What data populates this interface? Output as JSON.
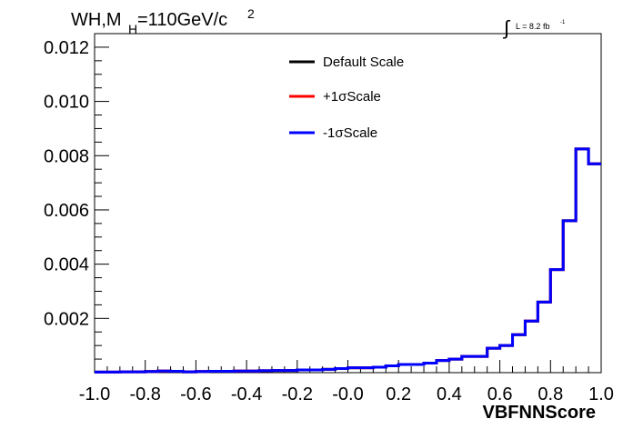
{
  "chart_data": {
    "type": "line",
    "title": "WH,M",
    "title_sub": "H",
    "title_rest": "=110GeV/c",
    "title_sup": "2",
    "lumi_integral": "∫",
    "lumi_text": "L = 8.2 fb",
    "lumi_sup": "-1",
    "xlabel": "VBFNNScore",
    "ylabel": "",
    "xlim": [
      -1.0,
      1.0
    ],
    "ylim": [
      0,
      0.0125
    ],
    "grid": false,
    "legend_position": "top-center",
    "x_ticks": [
      "-1.0",
      "-0.8",
      "-0.6",
      "-0.4",
      "-0.2",
      "-0.0",
      "0.2",
      "0.4",
      "0.6",
      "0.8",
      "1.0"
    ],
    "y_ticks": [
      "0.002",
      "0.004",
      "0.006",
      "0.008",
      "0.010",
      "0.012"
    ],
    "bin_edges": [
      -1.0,
      -0.95,
      -0.9,
      -0.85,
      -0.8,
      -0.75,
      -0.7,
      -0.65,
      -0.6,
      -0.55,
      -0.5,
      -0.45,
      -0.4,
      -0.35,
      -0.3,
      -0.25,
      -0.2,
      -0.15,
      -0.1,
      -0.05,
      0.0,
      0.05,
      0.1,
      0.15,
      0.2,
      0.25,
      0.3,
      0.35,
      0.4,
      0.45,
      0.5,
      0.55,
      0.6,
      0.65,
      0.7,
      0.75,
      0.8,
      0.85,
      0.9,
      0.95,
      1.0
    ],
    "series": [
      {
        "name": "Default Scale",
        "color": "#000000",
        "values": [
          2e-05,
          2e-05,
          3e-05,
          3e-05,
          4e-05,
          6e-05,
          5e-05,
          3e-05,
          4e-05,
          5e-05,
          5e-05,
          6e-05,
          6e-05,
          7e-05,
          8e-05,
          8e-05,
          0.0001,
          0.0001,
          0.00012,
          0.00015,
          0.00018,
          0.00018,
          0.0002,
          0.00025,
          0.0003,
          0.0003,
          0.00035,
          0.00045,
          0.0005,
          0.0006,
          0.0006,
          0.0009,
          0.001,
          0.0014,
          0.0019,
          0.0026,
          0.0038,
          0.0056,
          0.00825,
          0.0077
        ]
      },
      {
        "name": "+1σScale",
        "color": "#ff0000",
        "values": [
          2e-05,
          2e-05,
          3e-05,
          3e-05,
          4e-05,
          6e-05,
          5e-05,
          3e-05,
          4e-05,
          5e-05,
          5e-05,
          6e-05,
          6e-05,
          7e-05,
          8e-05,
          8e-05,
          0.0001,
          0.0001,
          0.00012,
          0.00015,
          0.00018,
          0.00018,
          0.0002,
          0.00025,
          0.0003,
          0.0003,
          0.00035,
          0.00045,
          0.0005,
          0.0006,
          0.0006,
          0.0009,
          0.001,
          0.0014,
          0.0019,
          0.0026,
          0.0038,
          0.0056,
          0.00825,
          0.0077
        ]
      },
      {
        "name": "-1σScale",
        "color": "#0000ff",
        "values": [
          2e-05,
          2e-05,
          3e-05,
          3e-05,
          4e-05,
          6e-05,
          5e-05,
          3e-05,
          4e-05,
          5e-05,
          5e-05,
          6e-05,
          6e-05,
          7e-05,
          8e-05,
          8e-05,
          0.0001,
          0.0001,
          0.00012,
          0.00015,
          0.00018,
          0.00018,
          0.0002,
          0.00025,
          0.0003,
          0.0003,
          0.00035,
          0.00045,
          0.0005,
          0.0006,
          0.0006,
          0.0009,
          0.001,
          0.0014,
          0.0019,
          0.0026,
          0.0038,
          0.0056,
          0.00825,
          0.0077
        ]
      }
    ]
  }
}
